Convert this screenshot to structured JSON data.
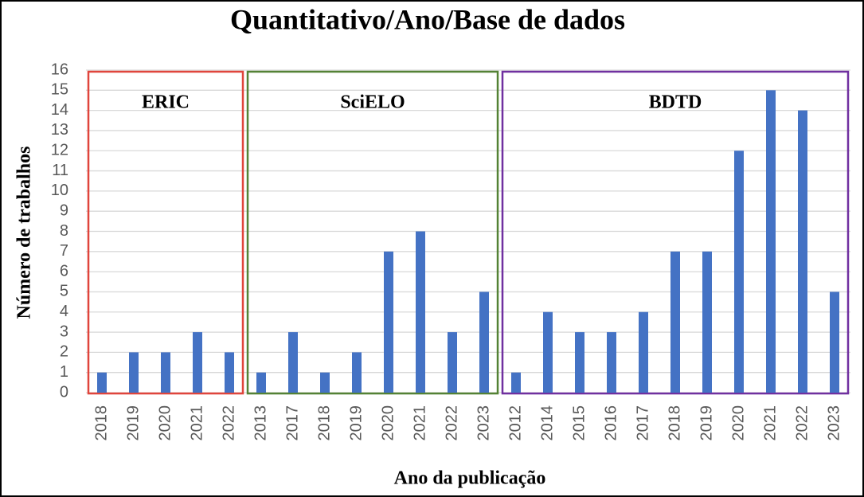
{
  "chart_data": {
    "type": "bar",
    "title": "Quantitativo/Ano/Base de dados",
    "x_label": "Ano da publicação",
    "y_label": "Número de trabalhos",
    "color": "#4472c4",
    "ylim": [
      0,
      16
    ],
    "yticks": [
      0,
      1,
      2,
      3,
      4,
      5,
      6,
      7,
      8,
      9,
      10,
      11,
      12,
      13,
      14,
      15,
      16
    ],
    "grid": true,
    "groups": [
      {
        "name": "ERIC",
        "color": "#e0453c",
        "categories": [
          "2018",
          "2019",
          "2020",
          "2021",
          "2022"
        ],
        "values": [
          1,
          2,
          2,
          3,
          2
        ]
      },
      {
        "name": "SciELO",
        "color": "#548235",
        "categories": [
          "2013",
          "2017",
          "2018",
          "2019",
          "2020",
          "2021",
          "2022",
          "2023"
        ],
        "values": [
          1,
          3,
          1,
          2,
          7,
          8,
          3,
          5
        ]
      },
      {
        "name": "BDTD",
        "color": "#7030a0",
        "categories": [
          "2012",
          "2014",
          "2015",
          "2016",
          "2017",
          "2018",
          "2019",
          "2020",
          "2021",
          "2022",
          "2023"
        ],
        "values": [
          1,
          4,
          3,
          3,
          4,
          7,
          7,
          12,
          15,
          14,
          5
        ]
      }
    ]
  }
}
